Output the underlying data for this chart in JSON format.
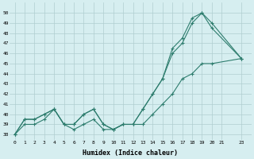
{
  "xlabel": "Humidex (Indice chaleur)",
  "x": [
    0,
    1,
    2,
    3,
    4,
    5,
    6,
    7,
    8,
    9,
    10,
    11,
    12,
    13,
    14,
    15,
    16,
    17,
    18,
    19,
    20,
    21,
    23
  ],
  "line1": [
    38,
    39.5,
    39.5,
    40,
    40.5,
    39,
    39,
    40,
    40.5,
    39,
    38.5,
    39,
    39,
    40.5,
    42,
    43.5,
    46,
    47,
    49,
    50,
    48.5,
    null,
    45.5
  ],
  "line2": [
    38,
    39.5,
    39.5,
    40,
    40.5,
    39,
    39,
    40,
    40.5,
    39,
    38.5,
    39,
    39,
    40.5,
    42,
    43.5,
    46.5,
    47.5,
    49.5,
    50,
    49,
    null,
    45.5
  ],
  "line3": [
    38,
    39,
    39,
    39.5,
    40.5,
    39,
    38.5,
    39,
    39.5,
    38.5,
    38.5,
    39,
    39,
    39,
    40,
    41,
    42,
    43.5,
    44,
    45,
    45,
    null,
    45.5
  ],
  "ylim": [
    37.5,
    51
  ],
  "xlim": [
    -0.5,
    24
  ],
  "yticks": [
    38,
    39,
    40,
    41,
    42,
    43,
    44,
    45,
    46,
    47,
    48,
    49,
    50
  ],
  "xticks": [
    0,
    1,
    2,
    3,
    4,
    5,
    6,
    7,
    8,
    9,
    10,
    11,
    12,
    13,
    14,
    15,
    16,
    17,
    18,
    19,
    20,
    21,
    23
  ],
  "line_color": "#2e7d6e",
  "bg_color": "#d6eef0",
  "grid_color": "#b0cdd0"
}
